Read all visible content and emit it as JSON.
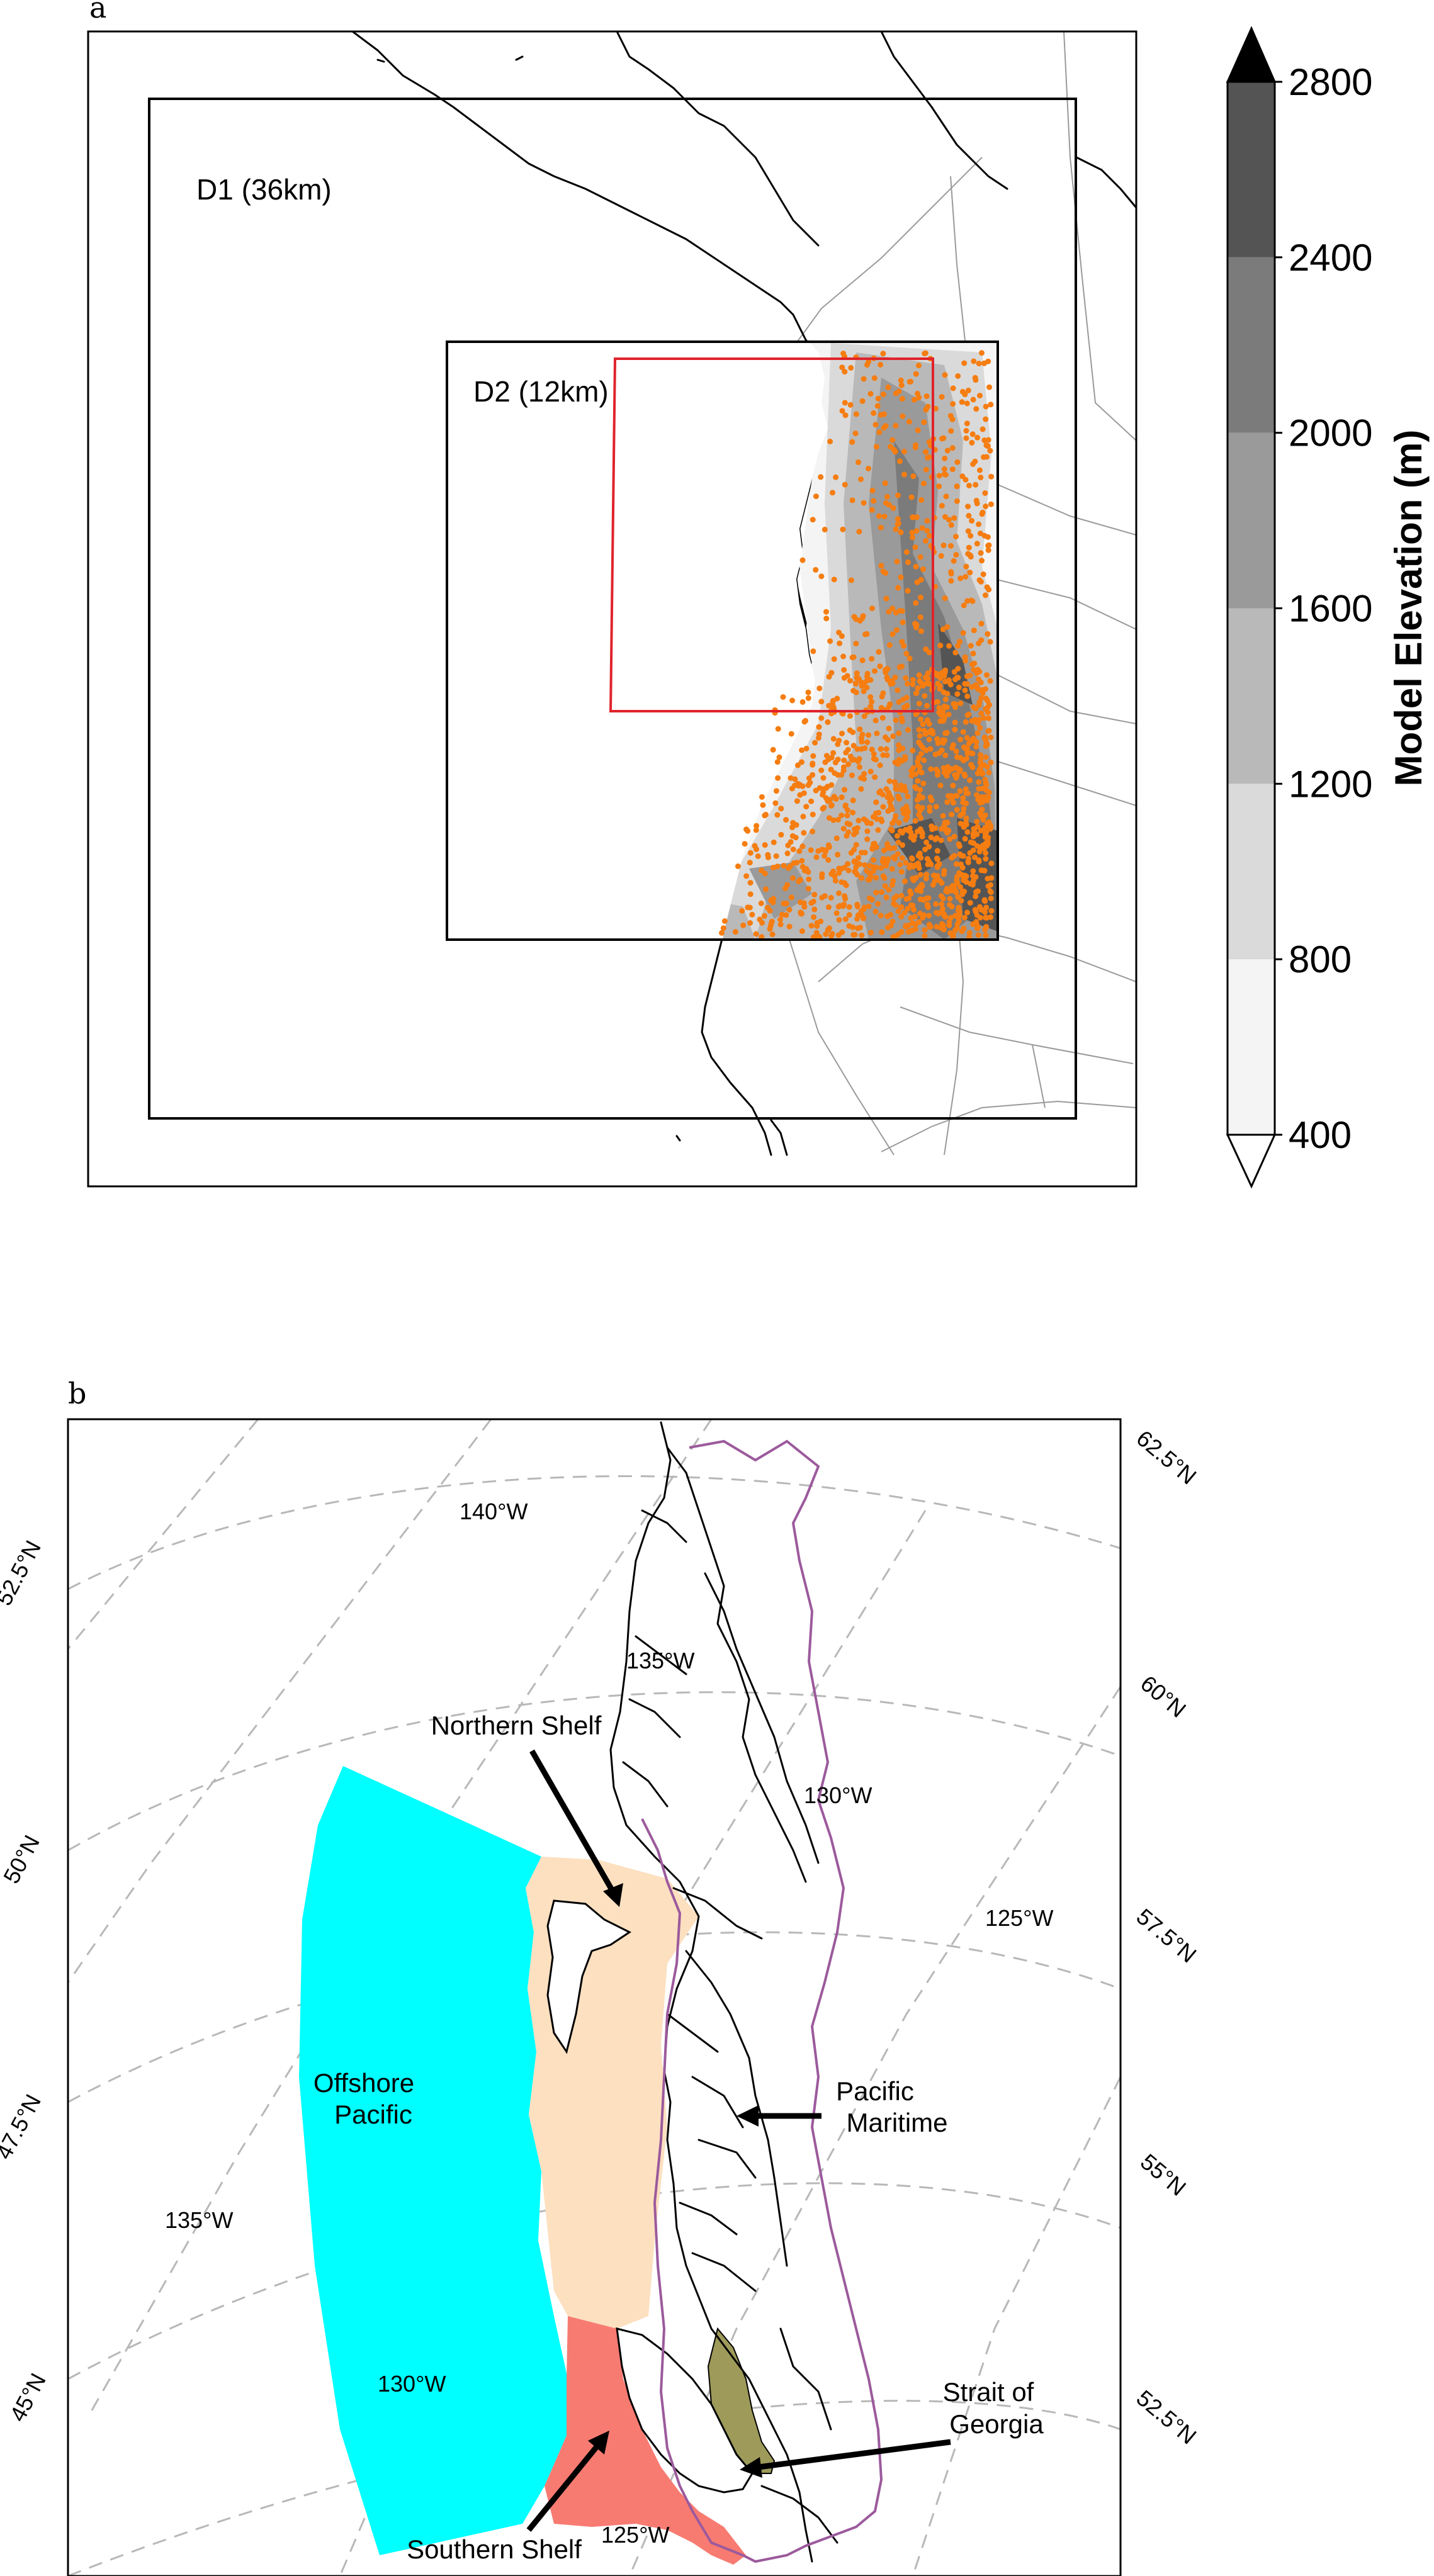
{
  "panel_a": {
    "letter": "a",
    "domains": [
      {
        "name": "D1",
        "label": "D1 (36km)"
      },
      {
        "name": "D2",
        "label": "D2 (12km)"
      }
    ],
    "station_color": "#f57d11",
    "subregion_box_color": "#e0232b",
    "colorbar": {
      "title": "Model Elevation (m)",
      "ticks": [
        "400",
        "800",
        "1200",
        "1600",
        "2000",
        "2400",
        "2800"
      ],
      "levels": [
        400,
        800,
        1200,
        1600,
        2000,
        2400,
        2800
      ],
      "bin_colors": [
        "#f4f4f4",
        "#dadada",
        "#b9b9b9",
        "#9a9a9a",
        "#7b7b7b",
        "#545454",
        "#1c1c1c"
      ],
      "extend_max_color": "#000000",
      "extend_min_color": "#ffffff"
    }
  },
  "panel_b": {
    "letter": "b",
    "lat_labels_left": [
      "52.5°N",
      "50°N",
      "47.5°N",
      "45°N"
    ],
    "lat_labels_right": [
      "62.5°N",
      "60°N",
      "57.5°N",
      "55°N",
      "52.5°N"
    ],
    "lon_labels": [
      "140°W",
      "135°W",
      "130°W",
      "125°W",
      "135°W",
      "130°W",
      "125°W"
    ],
    "regions": [
      {
        "name": "Offshore Pacific",
        "lines": [
          "Offshore",
          "Pacific"
        ],
        "color": "#00ffff"
      },
      {
        "name": "Northern Shelf",
        "lines": [
          "Northern Shelf"
        ],
        "color": "#fce0c0"
      },
      {
        "name": "Southern Shelf",
        "lines": [
          "Southern Shelf"
        ],
        "color": "#f87b72"
      },
      {
        "name": "Pacific Maritime",
        "lines": [
          "Pacific",
          "Maritime"
        ],
        "color": "#9c5a9c"
      },
      {
        "name": "Strait of Georgia",
        "lines": [
          "Strait of",
          "Georgia"
        ],
        "color": "#9e9a5a"
      }
    ]
  }
}
